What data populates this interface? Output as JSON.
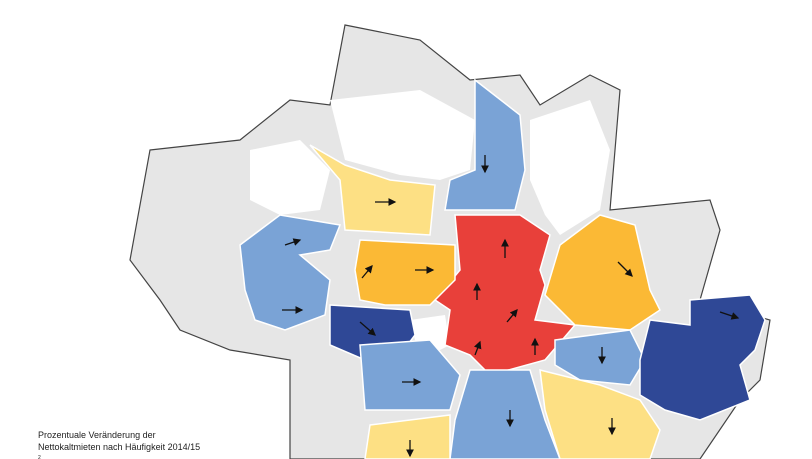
{
  "caption": {
    "lines": [
      "Prozentuale Veränderung der",
      "Nettokaltmieten nach Häufigkeit 2014/15"
    ]
  },
  "page_number": "2"
}
